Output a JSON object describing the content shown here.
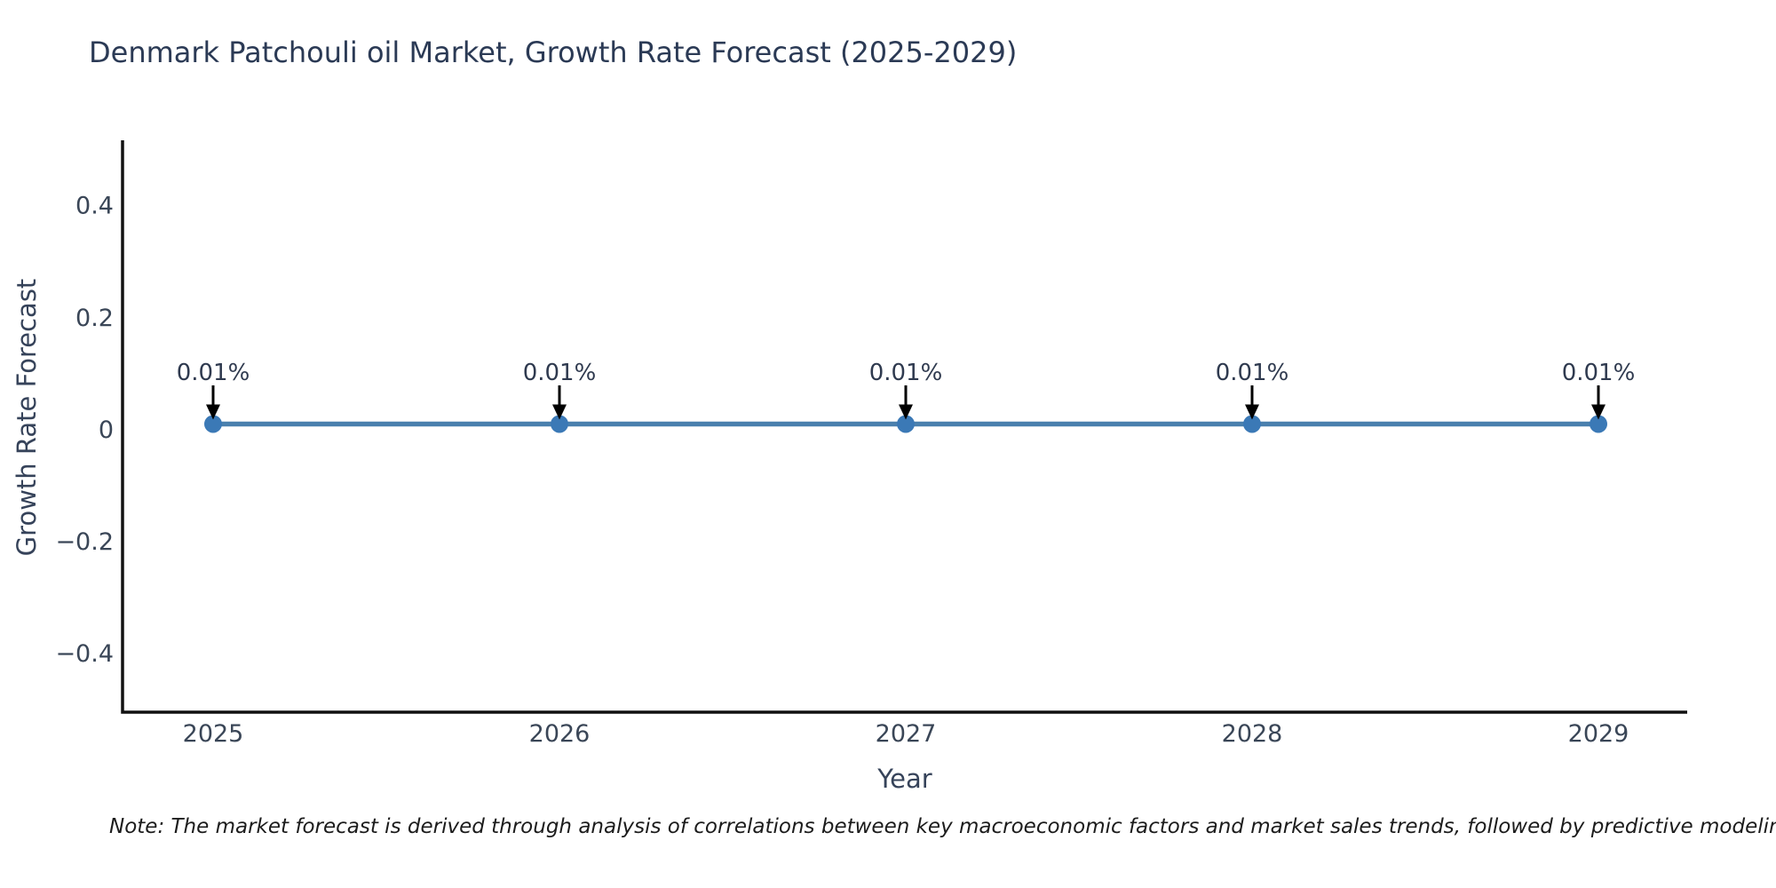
{
  "chart": {
    "title": "Denmark Patchouli oil Market, Growth Rate Forecast (2025-2029)",
    "xlabel": "Year",
    "ylabel": "Growth Rate Forecast",
    "note": "Note: The market forecast is derived through analysis of correlations between key macroeconomic factors and market sales trends, followed by predictive modeling to project future sa"
  },
  "chart_data": {
    "type": "line",
    "title": "Denmark Patchouli oil Market, Growth Rate Forecast (2025-2029)",
    "xlabel": "Year",
    "ylabel": "Growth Rate Forecast",
    "categories": [
      "2025",
      "2026",
      "2027",
      "2028",
      "2029"
    ],
    "series": [
      {
        "name": "Growth Rate Forecast",
        "values": [
          0.01,
          0.01,
          0.01,
          0.01,
          0.01
        ]
      }
    ],
    "point_labels": [
      "0.01%",
      "0.01%",
      "0.01%",
      "0.01%",
      "0.01%"
    ],
    "yticks": [
      0.4,
      0.2,
      0,
      -0.2,
      -0.4
    ],
    "ytick_labels": [
      "0.4",
      "0.2",
      "0",
      "−0.2",
      "−0.4"
    ],
    "ylim": [
      -0.505,
      0.517
    ],
    "grid": false,
    "legend": false,
    "colors": {
      "line": "#4a80ae",
      "marker": "#3b79b6",
      "axis": "#111111",
      "arrow": "#000000",
      "tick_text": "#3a4657",
      "title_text": "#2b3a55"
    }
  }
}
